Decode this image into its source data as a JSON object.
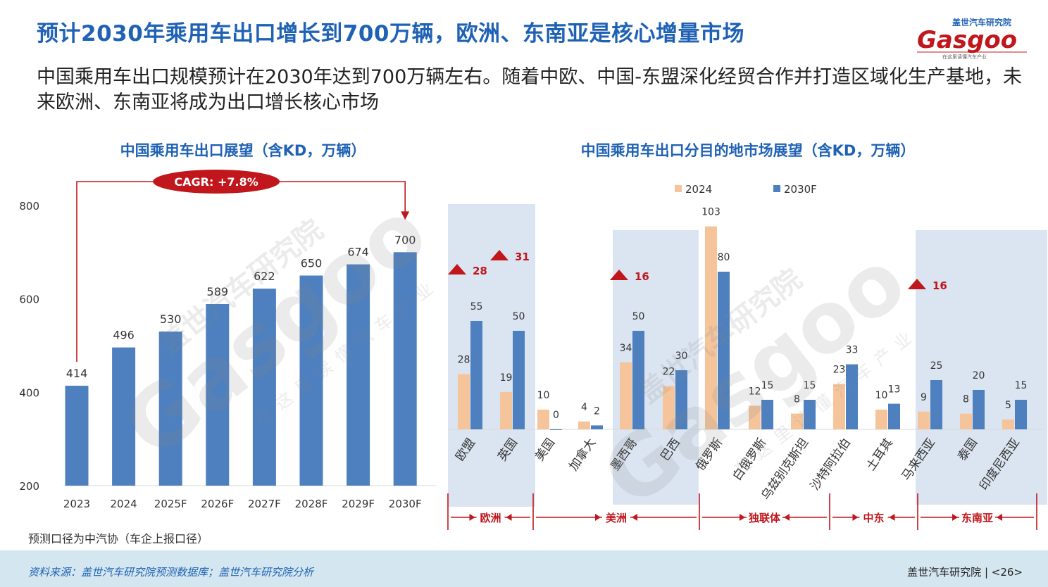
{
  "header": {
    "title": "预计2030年乘用车出口增长到700万辆，欧洲、东南亚是核心增量市场",
    "subtitle": "中国乘用车出口规模预计在2030年达到700万辆左右。随着中欧、中国-东盟深化经贸合作并打造区域化生产基地，未来欧洲、东南亚将成为出口增长核心市场"
  },
  "logo": {
    "top_text": "盖世汽车研究院",
    "name": "Gasgoo",
    "tagline": "在这里读懂汽车产业"
  },
  "watermark": {
    "cn": "盖世汽车研究院",
    "name": "Gasgoo",
    "tagline": "在这里读懂汽车产业"
  },
  "chart_data": [
    {
      "type": "bar",
      "title": "中国乘用车出口展望（含KD，万辆）",
      "categories": [
        "2023",
        "2024",
        "2025F",
        "2026F",
        "2027F",
        "2028F",
        "2029F",
        "2030F"
      ],
      "values": [
        414,
        496,
        530,
        589,
        622,
        650,
        674,
        700
      ],
      "ylim": [
        200,
        800
      ],
      "yticks": [
        200,
        400,
        600,
        800
      ],
      "annotation": "CAGR: +7.8%",
      "colors": {
        "bar": "#4e7fbe",
        "annotation": "#c0161c"
      }
    },
    {
      "type": "bar",
      "title": "中国乘用车出口分目的地市场展望（含KD，万辆）",
      "categories": [
        "欧盟",
        "英国",
        "美国",
        "加拿大",
        "墨西哥",
        "巴西",
        "俄罗斯",
        "白俄罗斯",
        "乌兹别克斯坦",
        "沙特阿拉伯",
        "土耳其",
        "马来西亚",
        "泰国",
        "印度尼西亚"
      ],
      "series": [
        {
          "name": "2024",
          "values": [
            28,
            19,
            10,
            4,
            34,
            22,
            103,
            12,
            8,
            23,
            10,
            9,
            8,
            5
          ],
          "color": "#f5c49a"
        },
        {
          "name": "2030F",
          "values": [
            55,
            50,
            0,
            2,
            50,
            30,
            80,
            15,
            15,
            33,
            13,
            25,
            20,
            15
          ],
          "color": "#4e7fbe"
        }
      ],
      "increments": [
        {
          "category": "欧盟",
          "value": "28"
        },
        {
          "category": "英国",
          "value": "31"
        },
        {
          "category": "墨西哥",
          "value": "16"
        },
        {
          "category": "马来西亚",
          "value": "16"
        }
      ],
      "regions": [
        "欧洲",
        "美洲",
        "独联体",
        "中东",
        "东南亚"
      ],
      "legend": "top"
    }
  ],
  "note": "预测口径为中汽协（车企上报口径）",
  "footer": {
    "source": "资料来源：盖世汽车研究院预测数据库；盖世汽车研究院分析",
    "brand": "盖世汽车研究院",
    "page": "<26>"
  }
}
